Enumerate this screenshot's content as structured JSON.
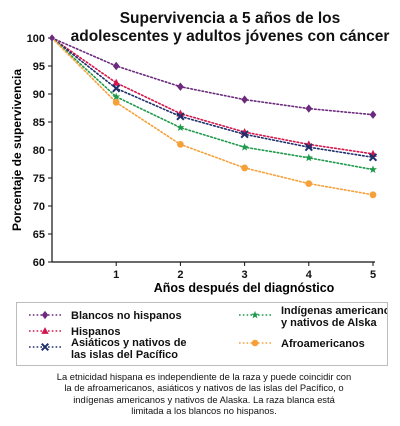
{
  "chart_data": {
    "type": "line",
    "title_lines": [
      "Supervivencia a 5 años de los",
      "adolescentes y adultos jóvenes con cáncer"
    ],
    "xlabel": "Años después del diagnóstico",
    "ylabel": "Porcentaje de supervivencia",
    "x": [
      0,
      1,
      2,
      3,
      4,
      5
    ],
    "x_tick_labels": [
      "1",
      "2",
      "3",
      "4",
      "5"
    ],
    "y_ticks": [
      60,
      65,
      70,
      75,
      80,
      85,
      90,
      95,
      100
    ],
    "xlim": [
      0,
      5
    ],
    "ylim": [
      60,
      100
    ],
    "grid": false,
    "legend_position": "bottom",
    "series": [
      {
        "name": "Blancos no hispanos",
        "values": [
          100,
          95,
          91.3,
          89,
          87.4,
          86.3
        ],
        "color": "#6b2a7c",
        "marker": "diamond"
      },
      {
        "name": "Hispanos",
        "values": [
          100,
          92,
          86.5,
          83.2,
          81,
          79.3
        ],
        "color": "#d3164e",
        "marker": "triangle"
      },
      {
        "name": "Asiáticos y nativos de\nlas islas del Pacífico",
        "values": [
          100,
          91,
          86,
          82.8,
          80.5,
          78.7
        ],
        "color": "#1f2f6b",
        "marker": "x"
      },
      {
        "name": "Indígenas americanos\ny nativos de Alska",
        "values": [
          100,
          89.5,
          84,
          80.5,
          78.6,
          76.5
        ],
        "color": "#1f9a4c",
        "marker": "star"
      },
      {
        "name": "Afroamericanos",
        "values": [
          100,
          88.5,
          81,
          76.8,
          74,
          72
        ],
        "color": "#f6a03a",
        "marker": "circle"
      }
    ]
  },
  "note_lines": [
    "La etnicidad hispana es independiente de la raza y puede coincidir con",
    "la de afroamericanos, asiáticos y nativos de las islas del Pacífico, o",
    "indígenas americanos y nativos de Alaska. La raza blanca está",
    "limitada a los blancos no hispanos."
  ]
}
